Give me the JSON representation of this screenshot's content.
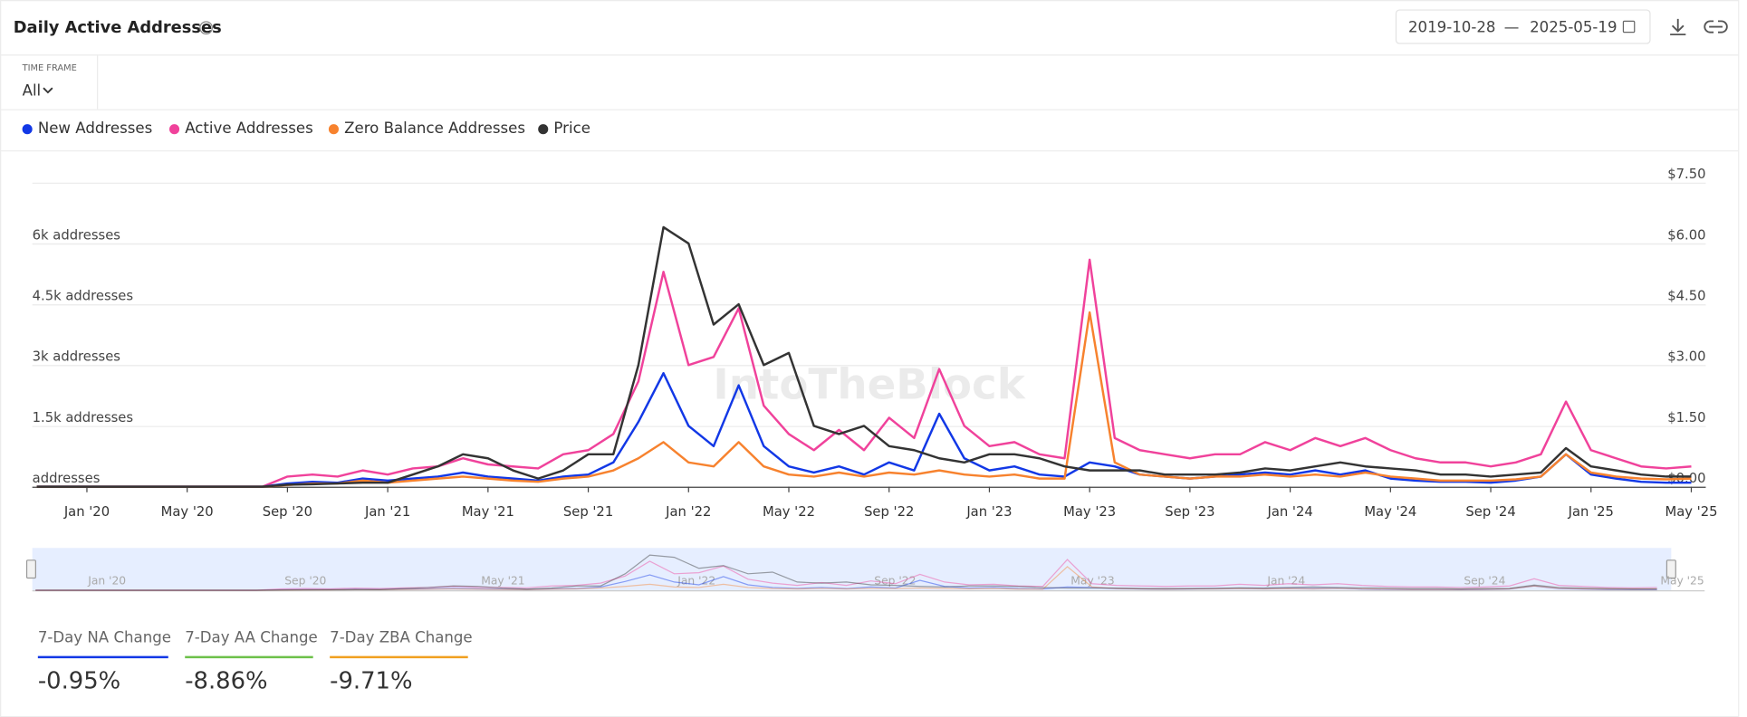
{
  "header": {
    "title": "Daily Active Addresses",
    "start_date": "2019-10-28",
    "separator": "—",
    "end_date": "2025-05-19",
    "timeframe_label": "TIME FRAME",
    "timeframe_value": "All"
  },
  "chart_data": {
    "type": "line",
    "watermark": "IntoTheBlock",
    "categories": [
      null,
      null,
      "Jan '20",
      null,
      null,
      null,
      "May '20",
      null,
      null,
      null,
      "Sep '20",
      null,
      null,
      null,
      "Jan '21",
      null,
      null,
      null,
      "May '21",
      null,
      null,
      null,
      "Sep '21",
      null,
      null,
      null,
      "Jan '22",
      null,
      null,
      null,
      "May '22",
      null,
      null,
      null,
      "Sep '22",
      null,
      null,
      null,
      "Jan '23",
      null,
      null,
      null,
      "May '23",
      null,
      null,
      null,
      "Sep '23",
      null,
      null,
      null,
      "Jan '24",
      null,
      null,
      null,
      "May '24",
      null,
      null,
      null,
      "Sep '24",
      null,
      null,
      null,
      "Jan '25",
      null,
      null,
      null,
      "May '25"
    ],
    "series": [
      {
        "name": "New Addresses",
        "color": "#1238e6",
        "values": [
          0,
          0,
          0,
          0,
          0,
          0,
          0,
          0,
          0,
          0,
          80,
          120,
          100,
          200,
          150,
          200,
          250,
          350,
          250,
          200,
          150,
          250,
          300,
          600,
          1600,
          2800,
          1500,
          1000,
          2500,
          1000,
          500,
          350,
          500,
          300,
          600,
          400,
          1800,
          700,
          400,
          500,
          300,
          250,
          600,
          500,
          300,
          250,
          200,
          250,
          300,
          350,
          300,
          400,
          300,
          400,
          200,
          150,
          120,
          120,
          100,
          150,
          250,
          800,
          300,
          200,
          120,
          100,
          100
        ]
      },
      {
        "name": "Active Addresses",
        "color": "#f0429b",
        "values": [
          0,
          0,
          0,
          0,
          0,
          0,
          0,
          0,
          0,
          0,
          250,
          300,
          250,
          400,
          300,
          450,
          500,
          700,
          550,
          500,
          450,
          800,
          900,
          1300,
          2600,
          5300,
          3000,
          3200,
          4400,
          2000,
          1300,
          900,
          1400,
          900,
          1700,
          1200,
          2900,
          1500,
          1000,
          1100,
          800,
          700,
          5600,
          1200,
          900,
          800,
          700,
          800,
          800,
          1100,
          900,
          1200,
          1000,
          1200,
          900,
          700,
          600,
          600,
          500,
          600,
          800,
          2100,
          900,
          700,
          500,
          450,
          500
        ]
      },
      {
        "name": "Zero Balance Addresses",
        "color": "#f7822e",
        "values": [
          0,
          0,
          0,
          0,
          0,
          0,
          0,
          0,
          0,
          0,
          40,
          80,
          80,
          150,
          100,
          150,
          200,
          250,
          200,
          150,
          120,
          200,
          250,
          400,
          700,
          1100,
          600,
          500,
          1100,
          500,
          300,
          250,
          350,
          250,
          350,
          300,
          400,
          300,
          250,
          300,
          200,
          200,
          4300,
          600,
          300,
          250,
          200,
          250,
          250,
          300,
          250,
          300,
          250,
          350,
          250,
          200,
          150,
          150,
          150,
          180,
          250,
          800,
          350,
          250,
          200,
          180,
          200
        ]
      },
      {
        "name": "Price",
        "color": "#333333",
        "axis": "y2",
        "values": [
          0,
          0,
          0,
          0,
          0,
          0,
          0,
          0,
          0,
          0,
          0.05,
          0.06,
          0.08,
          0.1,
          0.1,
          0.3,
          0.5,
          0.8,
          0.7,
          0.4,
          0.2,
          0.4,
          0.8,
          0.8,
          3.0,
          6.4,
          6.0,
          4.0,
          4.5,
          3.0,
          3.3,
          1.5,
          1.3,
          1.5,
          1.0,
          0.9,
          0.7,
          0.6,
          0.8,
          0.8,
          0.7,
          0.5,
          0.4,
          0.4,
          0.4,
          0.3,
          0.3,
          0.3,
          0.35,
          0.45,
          0.4,
          0.5,
          0.6,
          0.5,
          0.45,
          0.4,
          0.3,
          0.3,
          0.25,
          0.3,
          0.35,
          0.95,
          0.5,
          0.4,
          0.3,
          0.25,
          0.25
        ]
      }
    ],
    "ylim": [
      0,
      7500
    ],
    "yticks": [
      {
        "value": 0,
        "label": "addresses"
      },
      {
        "value": 1500,
        "label": "1.5k addresses"
      },
      {
        "value": 3000,
        "label": "3k addresses"
      },
      {
        "value": 4500,
        "label": "4.5k addresses"
      },
      {
        "value": 6000,
        "label": "6k addresses"
      }
    ],
    "y2lim": [
      0,
      7.5
    ],
    "y2ticks": [
      {
        "value": 0,
        "label": "$0.00"
      },
      {
        "value": 1.5,
        "label": "$1.50"
      },
      {
        "value": 3,
        "label": "$3.00"
      },
      {
        "value": 4.5,
        "label": "$4.50"
      },
      {
        "value": 6,
        "label": "$6.00"
      },
      {
        "value": 7.5,
        "label": "$7.50"
      }
    ],
    "grid": true,
    "legend": "top-left"
  },
  "stats": [
    {
      "label": "7-Day NA Change",
      "value": "-0.95%"
    },
    {
      "label": "7-Day AA Change",
      "value": "-8.86%"
    },
    {
      "label": "7-Day ZBA Change",
      "value": "-9.71%"
    }
  ]
}
